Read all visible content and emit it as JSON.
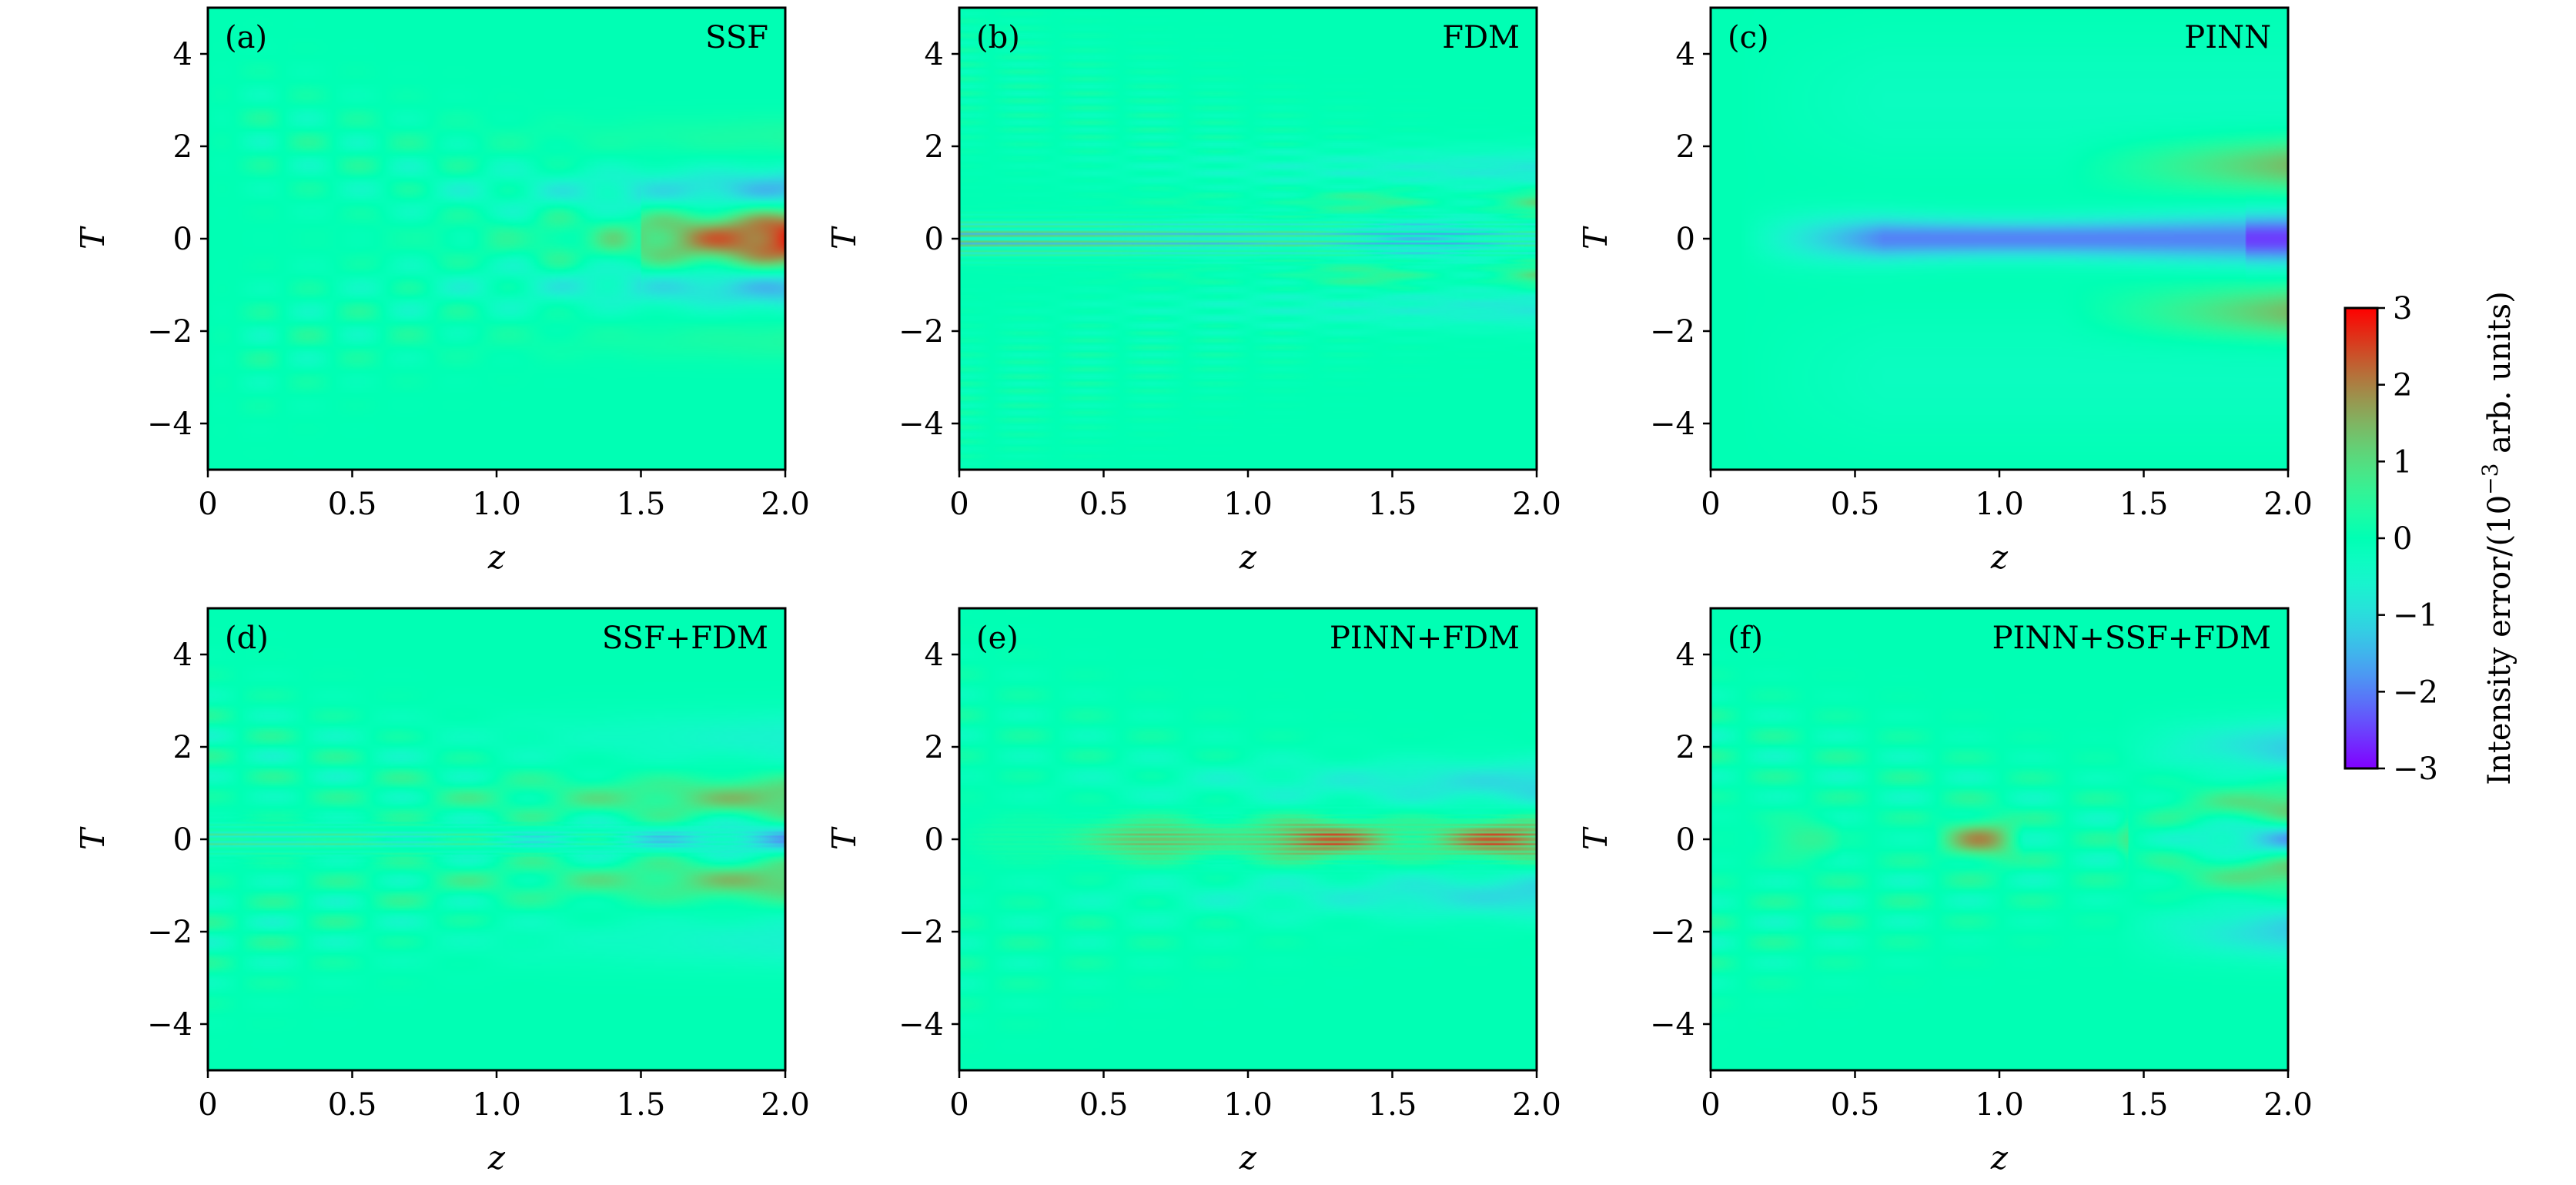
{
  "figure": {
    "colorbar": {
      "label_main": "Intensity error/(10",
      "label_sup": "−3",
      "label_tail": " arb. units)",
      "range": [
        -3,
        3
      ],
      "ticks": [
        3,
        2,
        1,
        0,
        -1,
        -2,
        -3
      ],
      "tick_labels": [
        "3",
        "2",
        "1",
        "0",
        "−1",
        "−2",
        "−3"
      ],
      "colormap": "rainbow",
      "colors": [
        "#7f00ff",
        "#3f5fff",
        "#00b3e6",
        "#7fffd4",
        "#a6f08c",
        "#ffb360",
        "#ff0000"
      ]
    }
  },
  "chart_data": [
    {
      "type": "heatmap",
      "panel": "(a)",
      "title": "SSF",
      "xlabel": "z",
      "ylabel": "T",
      "xlim": [
        0,
        2.0
      ],
      "ylim": [
        -5,
        5
      ],
      "x_ticks": [
        0,
        0.5,
        1.0,
        1.5,
        2.0
      ],
      "x_tick_labels": [
        "0",
        "0.5",
        "1.0",
        "1.5",
        "2.0"
      ],
      "y_ticks": [
        4,
        2,
        0,
        -2,
        -4
      ],
      "y_tick_labels": [
        "4",
        "2",
        "0",
        "−2",
        "−4"
      ],
      "value_range": [
        -3,
        3
      ],
      "model": "ssf"
    },
    {
      "type": "heatmap",
      "panel": "(b)",
      "title": "FDM",
      "xlabel": "z",
      "ylabel": "T",
      "xlim": [
        0,
        2.0
      ],
      "ylim": [
        -5,
        5
      ],
      "x_ticks": [
        0,
        0.5,
        1.0,
        1.5,
        2.0
      ],
      "x_tick_labels": [
        "0",
        "0.5",
        "1.0",
        "1.5",
        "2.0"
      ],
      "y_ticks": [
        4,
        2,
        0,
        -2,
        -4
      ],
      "y_tick_labels": [
        "4",
        "2",
        "0",
        "−2",
        "−4"
      ],
      "value_range": [
        -3,
        3
      ],
      "model": "fdm"
    },
    {
      "type": "heatmap",
      "panel": "(c)",
      "title": "PINN",
      "xlabel": "z",
      "ylabel": "T",
      "xlim": [
        0,
        2.0
      ],
      "ylim": [
        -5,
        5
      ],
      "x_ticks": [
        0,
        0.5,
        1.0,
        1.5,
        2.0
      ],
      "x_tick_labels": [
        "0",
        "0.5",
        "1.0",
        "1.5",
        "2.0"
      ],
      "y_ticks": [
        4,
        2,
        0,
        -2,
        -4
      ],
      "y_tick_labels": [
        "4",
        "2",
        "0",
        "−2",
        "−4"
      ],
      "value_range": [
        -3,
        3
      ],
      "model": "pinn"
    },
    {
      "type": "heatmap",
      "panel": "(d)",
      "title": "SSF+FDM",
      "xlabel": "z",
      "ylabel": "T",
      "xlim": [
        0,
        2.0
      ],
      "ylim": [
        -5,
        5
      ],
      "x_ticks": [
        0,
        0.5,
        1.0,
        1.5,
        2.0
      ],
      "x_tick_labels": [
        "0",
        "0.5",
        "1.0",
        "1.5",
        "2.0"
      ],
      "y_ticks": [
        4,
        2,
        0,
        -2,
        -4
      ],
      "y_tick_labels": [
        "4",
        "2",
        "0",
        "−2",
        "−4"
      ],
      "value_range": [
        -3,
        3
      ],
      "model": "ssf_fdm"
    },
    {
      "type": "heatmap",
      "panel": "(e)",
      "title": "PINN+FDM",
      "xlabel": "z",
      "ylabel": "T",
      "xlim": [
        0,
        2.0
      ],
      "ylim": [
        -5,
        5
      ],
      "x_ticks": [
        0,
        0.5,
        1.0,
        1.5,
        2.0
      ],
      "x_tick_labels": [
        "0",
        "0.5",
        "1.0",
        "1.5",
        "2.0"
      ],
      "y_ticks": [
        4,
        2,
        0,
        -2,
        -4
      ],
      "y_tick_labels": [
        "4",
        "2",
        "0",
        "−2",
        "−4"
      ],
      "value_range": [
        -3,
        3
      ],
      "model": "pinn_fdm"
    },
    {
      "type": "heatmap",
      "panel": "(f)",
      "title": "PINN+SSF+FDM",
      "xlabel": "z",
      "ylabel": "T",
      "xlim": [
        0,
        2.0
      ],
      "ylim": [
        -5,
        5
      ],
      "x_ticks": [
        0,
        0.5,
        1.0,
        1.5,
        2.0
      ],
      "x_tick_labels": [
        "0",
        "0.5",
        "1.0",
        "1.5",
        "2.0"
      ],
      "y_ticks": [
        4,
        2,
        0,
        -2,
        -4
      ],
      "y_tick_labels": [
        "4",
        "2",
        "0",
        "−2",
        "−4"
      ],
      "value_range": [
        -3,
        3
      ],
      "model": "pinn_ssf_fdm"
    }
  ]
}
